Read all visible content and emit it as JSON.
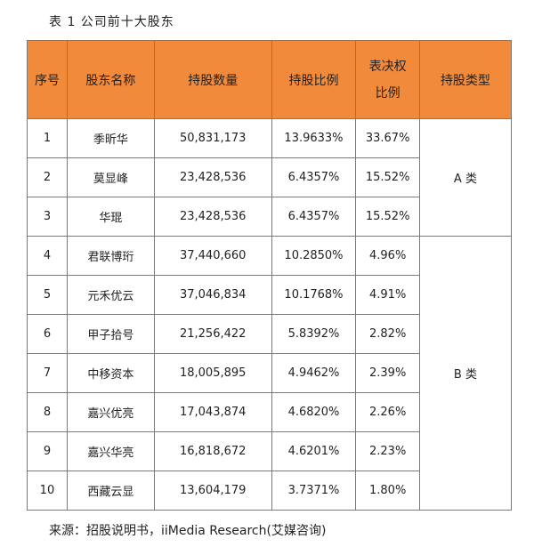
{
  "caption": "表 1 公司前十大股东",
  "headers": {
    "index": "序号",
    "name": "股东名称",
    "quantity": "持股数量",
    "ratio": "持股比例",
    "vote_line1": "表决权",
    "vote_line2": "比例",
    "type": "持股类型"
  },
  "rows": [
    {
      "index": "1",
      "name": "季昕华",
      "quantity": "50,831,173",
      "ratio": "13.9633%",
      "vote": "33.67%"
    },
    {
      "index": "2",
      "name": "莫显峰",
      "quantity": "23,428,536",
      "ratio": "6.4357%",
      "vote": "15.52%"
    },
    {
      "index": "3",
      "name": "华琨",
      "quantity": "23,428,536",
      "ratio": "6.4357%",
      "vote": "15.52%"
    },
    {
      "index": "4",
      "name": "君联博珩",
      "quantity": "37,440,660",
      "ratio": "10.2850%",
      "vote": "4.96%"
    },
    {
      "index": "5",
      "name": "元禾优云",
      "quantity": "37,046,834",
      "ratio": "10.1768%",
      "vote": "4.91%"
    },
    {
      "index": "6",
      "name": "甲子拾号",
      "quantity": "21,256,422",
      "ratio": "5.8392%",
      "vote": "2.82%"
    },
    {
      "index": "7",
      "name": "中移资本",
      "quantity": "18,005,895",
      "ratio": "4.9462%",
      "vote": "2.39%"
    },
    {
      "index": "8",
      "name": "嘉兴优亮",
      "quantity": "17,043,874",
      "ratio": "4.6820%",
      "vote": "2.26%"
    },
    {
      "index": "9",
      "name": "嘉兴华亮",
      "quantity": "16,818,672",
      "ratio": "4.6201%",
      "vote": "2.23%"
    },
    {
      "index": "10",
      "name": "西藏云显",
      "quantity": "13,604,179",
      "ratio": "3.7371%",
      "vote": "1.80%"
    }
  ],
  "types": {
    "a": "A 类",
    "b": "B 类"
  },
  "source": "来源：招股说明书，iiMedia Research(艾媒咨询)"
}
